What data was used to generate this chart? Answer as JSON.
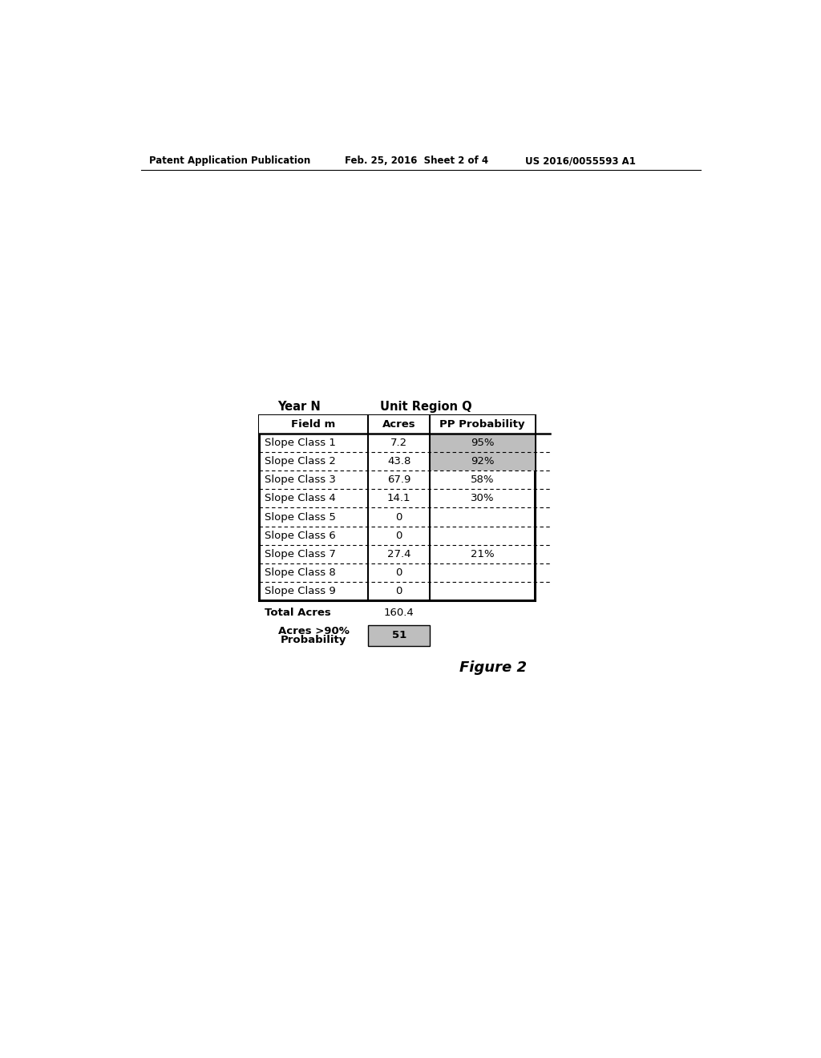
{
  "header_left": "Patent Application Publication",
  "header_center": "Feb. 25, 2016  Sheet 2 of 4",
  "header_right": "US 2016/0055593 A1",
  "figure_label": "Figure 2",
  "table_title_left": "Year N",
  "table_title_right": "Unit Region Q",
  "col_headers": [
    "Field m",
    "Acres",
    "PP Probability"
  ],
  "rows": [
    [
      "Slope Class 1",
      "7.2",
      "95%"
    ],
    [
      "Slope Class 2",
      "43.8",
      "92%"
    ],
    [
      "Slope Class 3",
      "67.9",
      "58%"
    ],
    [
      "Slope Class 4",
      "14.1",
      "30%"
    ],
    [
      "Slope Class 5",
      "0",
      ""
    ],
    [
      "Slope Class 6",
      "0",
      ""
    ],
    [
      "Slope Class 7",
      "27.4",
      "21%"
    ],
    [
      "Slope Class 8",
      "0",
      ""
    ],
    [
      "Slope Class 9",
      "0",
      ""
    ]
  ],
  "footer_total_label": "Total Acres",
  "footer_total_value": "160.4",
  "footer_prob_line1": "Acres >90%",
  "footer_prob_line2": "Probability",
  "footer_prob_value": "51",
  "shaded_pp_rows": [
    0,
    1
  ],
  "shade_color": "#bebebe",
  "bg_color": "#ffffff",
  "text_color": "#000000",
  "border_color": "#000000",
  "header_fontsize": 8.5,
  "table_fontsize": 9.5,
  "figure_label_fontsize": 13,
  "title_fontsize": 10.5
}
